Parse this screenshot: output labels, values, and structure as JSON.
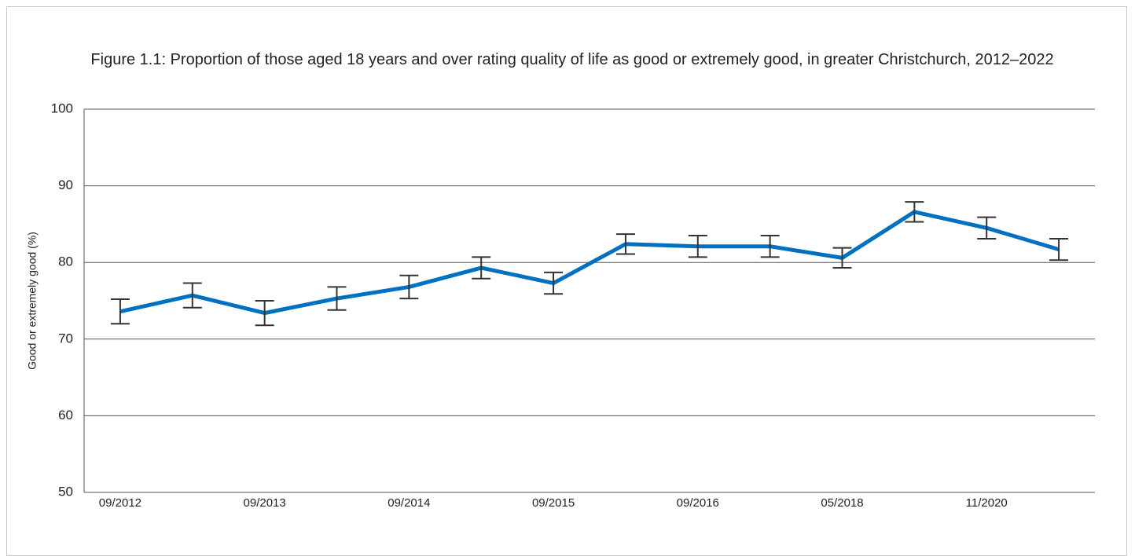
{
  "chart_data": {
    "type": "line",
    "title": "Figure 1.1: Proportion of those aged 18 years and over rating quality of life as good or extremely good, in greater Christchurch, 2012–2022",
    "y_label": "Good or extremely good (%)",
    "categories": [
      "09/2012",
      null,
      "09/2013",
      null,
      "09/2014",
      null,
      "09/2015",
      null,
      "09/2016",
      null,
      "05/2018",
      null,
      "11/2020",
      null
    ],
    "values": [
      73.6,
      75.7,
      73.4,
      75.3,
      76.8,
      79.3,
      77.3,
      82.4,
      82.1,
      82.1,
      80.6,
      86.6,
      84.5,
      81.7
    ],
    "errors": [
      1.6,
      1.6,
      1.6,
      1.5,
      1.5,
      1.4,
      1.4,
      1.3,
      1.4,
      1.4,
      1.3,
      1.3,
      1.4,
      1.4
    ],
    "color": "#0070c0",
    "error_color": "#333333",
    "ylim": [
      50,
      100
    ],
    "yticks": [
      50,
      60,
      70,
      80,
      90,
      100
    ],
    "grid": true
  }
}
